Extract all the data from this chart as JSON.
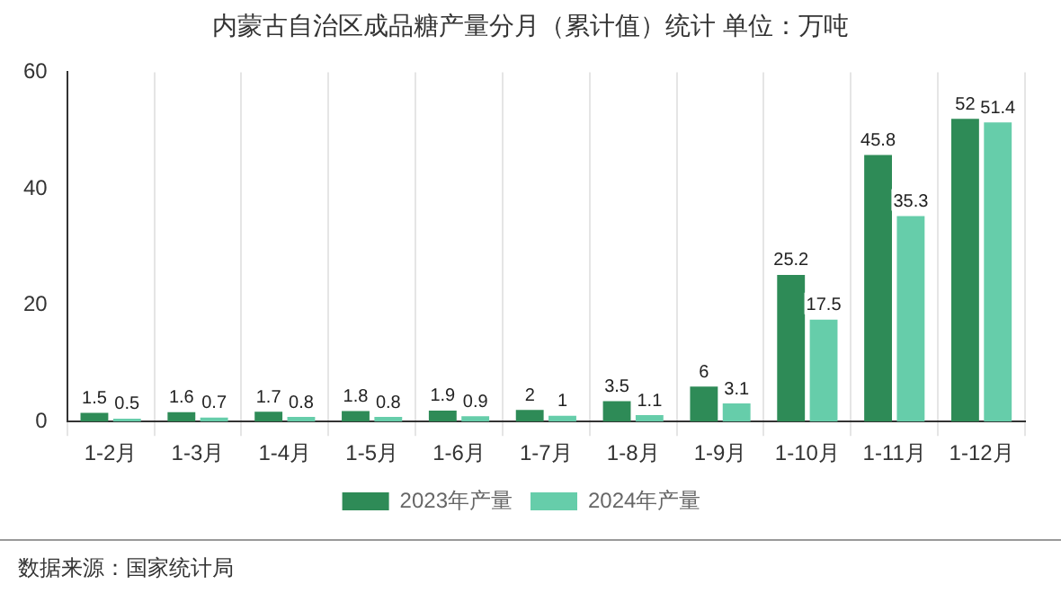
{
  "chart_data": {
    "type": "bar",
    "title": "内蒙古自治区成品糖产量分月（累计值）统计 单位：万吨",
    "categories": [
      "1-2月",
      "1-3月",
      "1-4月",
      "1-5月",
      "1-6月",
      "1-7月",
      "1-8月",
      "1-9月",
      "1-10月",
      "1-11月",
      "1-12月"
    ],
    "series": [
      {
        "name": "2023年产量",
        "color": "#2e8b57",
        "values": [
          1.5,
          1.6,
          1.7,
          1.8,
          1.9,
          2,
          3.5,
          6,
          25.2,
          45.8,
          52
        ]
      },
      {
        "name": "2024年产量",
        "color": "#66cdaa",
        "values": [
          0.5,
          0.7,
          0.8,
          0.8,
          0.9,
          1,
          1.1,
          3.1,
          17.5,
          35.3,
          51.4
        ]
      }
    ],
    "ylim": [
      0,
      60
    ],
    "yticks": [
      0,
      20,
      40,
      60
    ],
    "grid": "x",
    "legend": "bottom",
    "data_labels": true,
    "annotations": [
      "数据来源：国家统计局"
    ]
  }
}
